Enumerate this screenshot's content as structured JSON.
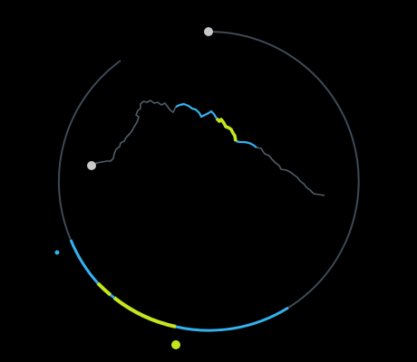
{
  "colors": {
    "background": "#000000",
    "track": "#3d4a55",
    "profile": "#525c66",
    "highlight_blue": "#33b2f0",
    "highlight_green": "#c5e61f",
    "marker": "#c8c8c8"
  },
  "segments": [
    {
      "id": "segment-blue",
      "color": "highlight_blue"
    },
    {
      "id": "segment-green",
      "color": "highlight_green"
    }
  ]
}
